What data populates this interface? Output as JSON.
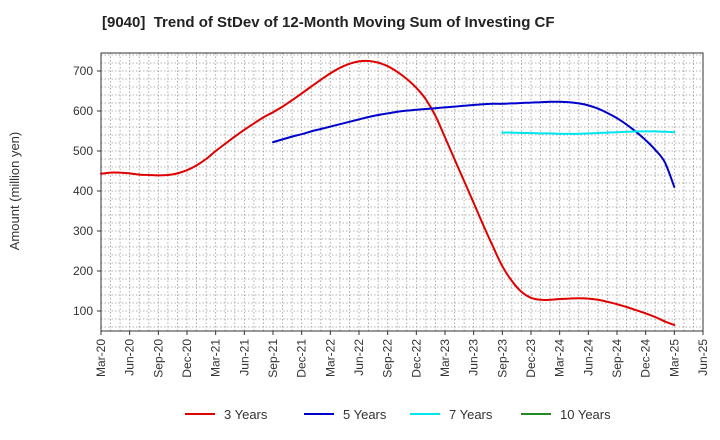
{
  "chart_data": {
    "type": "line",
    "title": "[9040]  Trend of StDev of 12-Month Moving Sum of Investing CF",
    "ylabel": "Amount (million yen)",
    "xlabel": "",
    "ylim": [
      50,
      745
    ],
    "yticks": [
      100,
      200,
      300,
      400,
      500,
      600,
      700
    ],
    "xlim": [
      "2020-03",
      "2025-06"
    ],
    "categories": [
      "Mar-20",
      "Jun-20",
      "Sep-20",
      "Dec-20",
      "Mar-21",
      "Jun-21",
      "Sep-21",
      "Dec-21",
      "Mar-22",
      "Jun-22",
      "Sep-22",
      "Dec-22",
      "Mar-23",
      "Jun-23",
      "Sep-23",
      "Dec-23",
      "Mar-24",
      "Jun-24",
      "Sep-24",
      "Dec-24",
      "Mar-25",
      "Jun-25"
    ],
    "grid": true,
    "legend_position": "bottom",
    "series": [
      {
        "name": "3 Years",
        "color": "#e00000",
        "x": [
          "2020-03",
          "2020-04",
          "2020-05",
          "2020-06",
          "2020-07",
          "2020-08",
          "2020-09",
          "2020-10",
          "2020-11",
          "2020-12",
          "2021-01",
          "2021-02",
          "2021-03",
          "2021-04",
          "2021-05",
          "2021-06",
          "2021-07",
          "2021-08",
          "2021-09",
          "2021-10",
          "2021-11",
          "2021-12",
          "2022-01",
          "2022-02",
          "2022-03",
          "2022-04",
          "2022-05",
          "2022-06",
          "2022-07",
          "2022-08",
          "2022-09",
          "2022-10",
          "2022-11",
          "2022-12",
          "2023-01",
          "2023-02",
          "2023-03",
          "2023-04",
          "2023-05",
          "2023-06",
          "2023-07",
          "2023-08",
          "2023-09",
          "2023-10",
          "2023-11",
          "2023-12",
          "2024-01",
          "2024-02",
          "2024-03",
          "2024-04",
          "2024-05",
          "2024-06",
          "2024-07",
          "2024-08",
          "2024-09",
          "2024-10",
          "2024-11",
          "2024-12",
          "2025-01",
          "2025-02",
          "2025-03"
        ],
        "values": [
          443,
          446,
          446,
          444,
          441,
          440,
          439,
          440,
          444,
          452,
          464,
          480,
          500,
          518,
          536,
          553,
          569,
          584,
          597,
          611,
          627,
          644,
          661,
          678,
          694,
          708,
          718,
          724,
          725,
          721,
          712,
          698,
          680,
          658,
          629,
          588,
          534,
          479,
          425,
          370,
          315,
          262,
          212,
          175,
          148,
          133,
          128,
          128,
          130,
          131,
          132,
          131,
          128,
          123,
          117,
          110,
          102,
          94,
          85,
          74,
          65
        ]
      },
      {
        "name": "5 Years",
        "color": "#0000cc",
        "x": [
          "2021-09",
          "2021-10",
          "2021-11",
          "2021-12",
          "2022-01",
          "2022-02",
          "2022-03",
          "2022-04",
          "2022-05",
          "2022-06",
          "2022-07",
          "2022-08",
          "2022-09",
          "2022-10",
          "2022-11",
          "2022-12",
          "2023-01",
          "2023-02",
          "2023-03",
          "2023-04",
          "2023-05",
          "2023-06",
          "2023-07",
          "2023-08",
          "2023-09",
          "2023-10",
          "2023-11",
          "2023-12",
          "2024-01",
          "2024-02",
          "2024-03",
          "2024-04",
          "2024-05",
          "2024-06",
          "2024-07",
          "2024-08",
          "2024-09",
          "2024-10",
          "2024-11",
          "2024-12",
          "2025-01",
          "2025-02",
          "2025-03"
        ],
        "values": [
          522,
          529,
          536,
          542,
          549,
          555,
          561,
          567,
          573,
          579,
          585,
          590,
          594,
          598,
          601,
          603,
          605,
          607,
          609,
          611,
          613,
          615,
          617,
          618,
          618,
          619,
          620,
          621,
          622,
          623,
          623,
          622,
          619,
          614,
          606,
          595,
          582,
          566,
          548,
          527,
          503,
          472,
          410
        ]
      },
      {
        "name": "7 Years",
        "color": "#00e5ee",
        "x": [
          "2023-09",
          "2023-10",
          "2023-11",
          "2023-12",
          "2024-01",
          "2024-02",
          "2024-03",
          "2024-04",
          "2024-05",
          "2024-06",
          "2024-07",
          "2024-08",
          "2024-09",
          "2024-10",
          "2024-11",
          "2024-12",
          "2025-01",
          "2025-02",
          "2025-03"
        ],
        "values": [
          546,
          546,
          545,
          545,
          544,
          544,
          543,
          543,
          543,
          544,
          545,
          546,
          547,
          548,
          549,
          549,
          549,
          548,
          547
        ]
      },
      {
        "name": "10 Years",
        "color": "#228b22",
        "x": [],
        "values": []
      }
    ]
  }
}
